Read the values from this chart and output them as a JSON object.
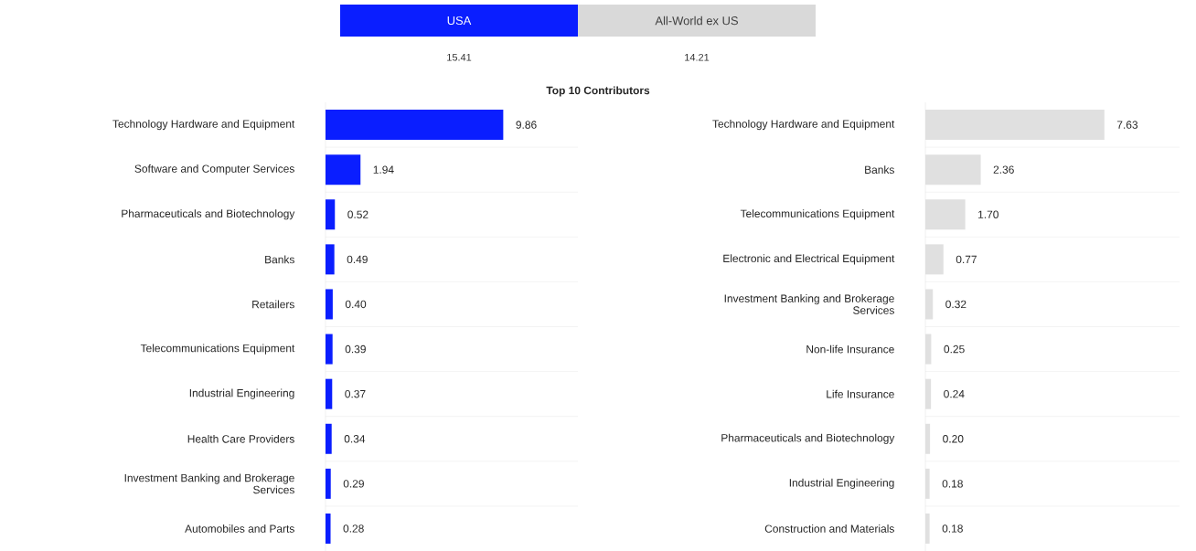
{
  "chart_data": [
    {
      "type": "other",
      "subtitle": "Top 10 Contributors",
      "categories": [
        "USA",
        "All-World ex US"
      ],
      "value_labels": [
        "15.41",
        "14.21"
      ],
      "colors": [
        "#0a1eff",
        "#d9d9d9"
      ]
    },
    {
      "type": "bar",
      "orientation": "horizontal",
      "tick_labels": "y",
      "grid": "y",
      "categories": [
        "Technology Hardware and Equipment",
        "Software and Computer Services",
        "Pharmaceuticals and Biotechnology",
        "Banks",
        "Retailers",
        "Telecommunications Equipment",
        "Industrial Engineering",
        "Health Care Providers",
        "Investment Banking and Brokerage Services",
        "Automobiles and Parts"
      ],
      "values": [
        9.86,
        1.94,
        0.52,
        0.49,
        0.4,
        0.39,
        0.37,
        0.34,
        0.29,
        0.28
      ],
      "value_labels": [
        "9.86",
        "1.94",
        "0.52",
        "0.49",
        "0.40",
        "0.39",
        "0.37",
        "0.34",
        "0.29",
        "0.28"
      ],
      "color": "#0a1eff"
    },
    {
      "type": "bar",
      "orientation": "horizontal",
      "tick_labels": "y",
      "grid": "y",
      "categories": [
        "Technology Hardware and Equipment",
        "Banks",
        "Telecommunications Equipment",
        "Electronic and Electrical Equipment",
        "Investment Banking and Brokerage Services",
        "Non-life Insurance",
        "Life Insurance",
        "Pharmaceuticals and Biotechnology",
        "Industrial Engineering",
        "Construction and Materials"
      ],
      "values": [
        7.63,
        2.36,
        1.7,
        0.77,
        0.32,
        0.25,
        0.24,
        0.2,
        0.18,
        0.18
      ],
      "value_labels": [
        "7.63",
        "2.36",
        "1.70",
        "0.77",
        "0.32",
        "0.25",
        "0.24",
        "0.20",
        "0.18",
        "0.18"
      ],
      "color": "#e0e0e0"
    }
  ]
}
